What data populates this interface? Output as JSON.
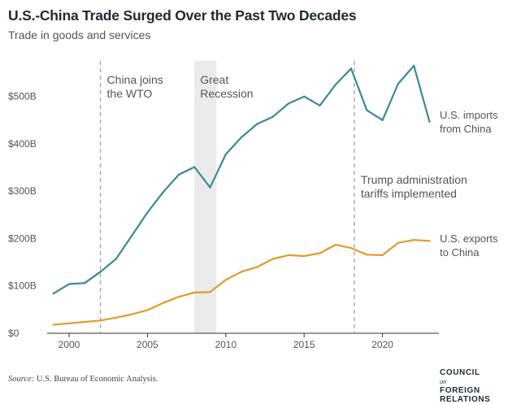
{
  "header": {
    "title": "U.S.-China Trade Surged Over the Past Two Decades",
    "subtitle": "Trade in goods and services"
  },
  "footer": {
    "source_label": "Source:",
    "source_text": "U.S. Bureau of Economic Analysis.",
    "logo_line1_a": "COUNCIL",
    "logo_line1_b": "on",
    "logo_line2": "FOREIGN",
    "logo_line3": "RELATIONS"
  },
  "colors": {
    "imports": "#3a8a94",
    "exports": "#e39a2c",
    "recession_band": "#ebebeb",
    "event_line": "#a8a8a8",
    "axis": "#333333",
    "text": "#555555"
  },
  "chart_data": {
    "type": "line",
    "title": "U.S.-China Trade Surged Over the Past Two Decades",
    "subtitle": "Trade in goods and services",
    "xlabel": "",
    "ylabel": "",
    "xlim": [
      1998.6,
      2023.6
    ],
    "ylim": [
      0,
      575
    ],
    "x_ticks": [
      2000,
      2005,
      2010,
      2015,
      2020
    ],
    "y_ticks": [
      0,
      100,
      200,
      300,
      400,
      500
    ],
    "y_tick_labels": [
      "$0",
      "$100B",
      "$200B",
      "$300B",
      "$400B",
      "$500B"
    ],
    "grid": false,
    "x": [
      1999,
      2000,
      2001,
      2002,
      2003,
      2004,
      2005,
      2006,
      2007,
      2008,
      2009,
      2010,
      2011,
      2012,
      2013,
      2014,
      2015,
      2016,
      2017,
      2018,
      2019,
      2020,
      2021,
      2022,
      2023
    ],
    "series": [
      {
        "name": "U.S. imports from China",
        "label_lines": [
          "U.S. imports",
          "from China"
        ],
        "color": "#3a8a94",
        "values": [
          84,
          104,
          106,
          130,
          157,
          206,
          255,
          298,
          335,
          351,
          308,
          378,
          414,
          442,
          457,
          485,
          500,
          481,
          525,
          559,
          471,
          450,
          527,
          565,
          447
        ]
      },
      {
        "name": "U.S. exports to China",
        "label_lines": [
          "U.S. exports",
          "to China"
        ],
        "color": "#e39a2c",
        "values": [
          18,
          21,
          24,
          27,
          33,
          40,
          49,
          64,
          77,
          86,
          87,
          113,
          130,
          140,
          157,
          165,
          163,
          169,
          187,
          180,
          166,
          165,
          191,
          197,
          195
        ]
      }
    ],
    "annotations": [
      {
        "type": "vline",
        "x": 2002,
        "lines": [
          "China joins",
          "the WTO"
        ]
      },
      {
        "type": "band",
        "x0": 2008,
        "x1": 2009.4,
        "lines": [
          "Great",
          "Recession"
        ]
      },
      {
        "type": "vline",
        "x": 2018.2,
        "lines": [
          "Trump administration",
          "tariffs implemented"
        ]
      }
    ]
  }
}
